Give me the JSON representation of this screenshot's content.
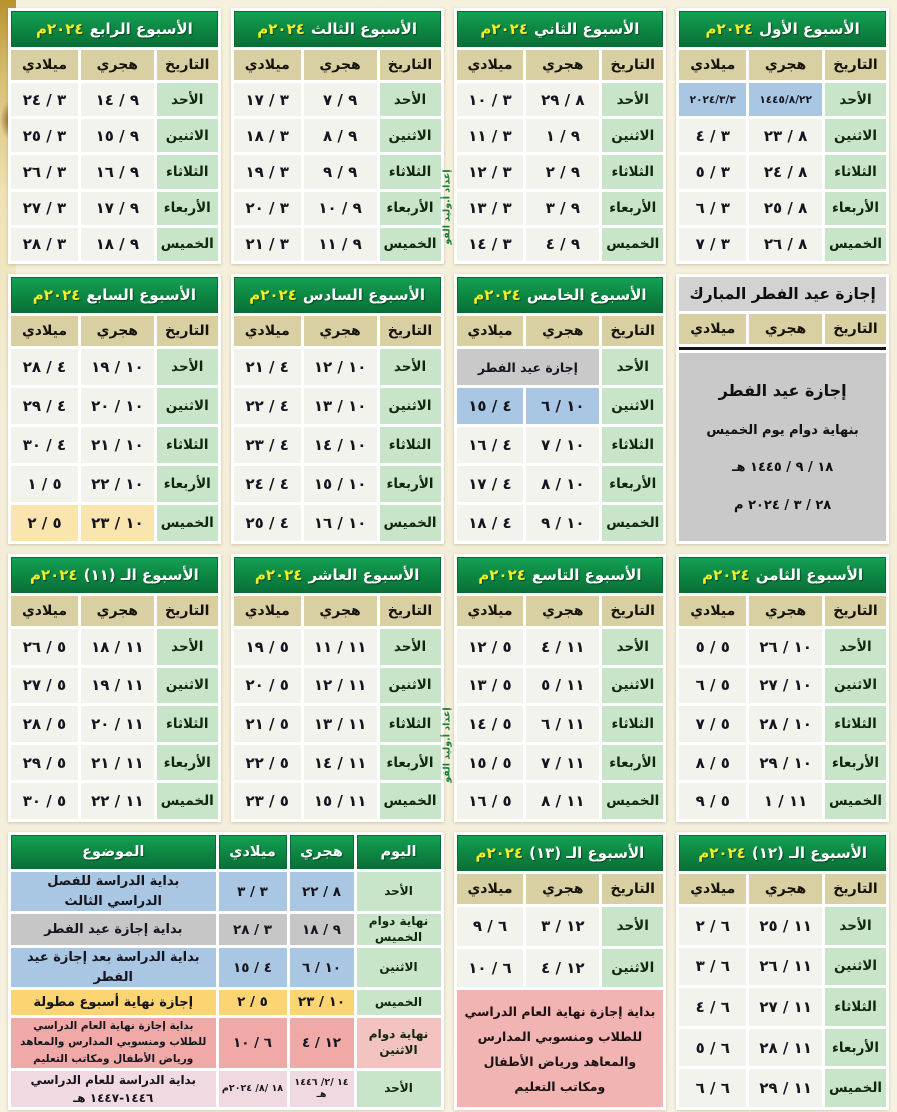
{
  "page": {
    "credit": "إعداد أ.وليد القو"
  },
  "labels": {
    "date": "التاريخ",
    "hijri": "هجري",
    "miladi": "ميلادي",
    "day": "اليوم",
    "subject": "الموضوع"
  },
  "weeks": [
    {
      "title": "الأسبوع الأول",
      "year": "٢٠٢٤م",
      "rows": [
        {
          "day": "الأحد",
          "hijri": "١٤٤٥/٨/٢٢",
          "miladi": "٢٠٢٤/٣/٣",
          "cls": "blue small"
        },
        {
          "day": "الاثنين",
          "hijri": "٨ / ٢٣",
          "miladi": "٣ / ٤",
          "cls": ""
        },
        {
          "day": "الثلاثاء",
          "hijri": "٨ / ٢٤",
          "miladi": "٣ / ٥",
          "cls": ""
        },
        {
          "day": "الأربعاء",
          "hijri": "٨ / ٢٥",
          "miladi": "٣ / ٦",
          "cls": ""
        },
        {
          "day": "الخميس",
          "hijri": "٨ / ٢٦",
          "miladi": "٣ / ٧",
          "cls": ""
        }
      ]
    },
    {
      "title": "الأسبوع الثاني",
      "year": "٢٠٢٤م",
      "rows": [
        {
          "day": "الأحد",
          "hijri": "٨ / ٢٩",
          "miladi": "٣ / ١٠",
          "cls": ""
        },
        {
          "day": "الاثنين",
          "hijri": "٩ / ١",
          "miladi": "٣ / ١١",
          "cls": ""
        },
        {
          "day": "الثلاثاء",
          "hijri": "٩ / ٢",
          "miladi": "٣ / ١٢",
          "cls": ""
        },
        {
          "day": "الأربعاء",
          "hijri": "٩ / ٣",
          "miladi": "٣ / ١٣",
          "cls": ""
        },
        {
          "day": "الخميس",
          "hijri": "٩ / ٤",
          "miladi": "٣ / ١٤",
          "cls": ""
        }
      ]
    },
    {
      "title": "الأسبوع الثالث",
      "year": "٢٠٢٤م",
      "rows": [
        {
          "day": "الأحد",
          "hijri": "٩ / ٧",
          "miladi": "٣ / ١٧",
          "cls": ""
        },
        {
          "day": "الاثنين",
          "hijri": "٩ / ٨",
          "miladi": "٣ / ١٨",
          "cls": ""
        },
        {
          "day": "الثلاثاء",
          "hijri": "٩ / ٩",
          "miladi": "٣ / ١٩",
          "cls": ""
        },
        {
          "day": "الأربعاء",
          "hijri": "٩ / ١٠",
          "miladi": "٣ / ٢٠",
          "cls": ""
        },
        {
          "day": "الخميس",
          "hijri": "٩ / ١١",
          "miladi": "٣ / ٢١",
          "cls": ""
        }
      ]
    },
    {
      "title": "الأسبوع الرابع",
      "year": "٢٠٢٤م",
      "rows": [
        {
          "day": "الأحد",
          "hijri": "٩ / ١٤",
          "miladi": "٣ / ٢٤",
          "cls": ""
        },
        {
          "day": "الاثنين",
          "hijri": "٩ / ١٥",
          "miladi": "٣ / ٢٥",
          "cls": ""
        },
        {
          "day": "الثلاثاء",
          "hijri": "٩ / ١٦",
          "miladi": "٣ / ٢٦",
          "cls": ""
        },
        {
          "day": "الأربعاء",
          "hijri": "٩ / ١٧",
          "miladi": "٣ / ٢٧",
          "cls": ""
        },
        {
          "day": "الخميس",
          "hijri": "٩ / ١٨",
          "miladi": "٣ / ٢٨",
          "cls": ""
        }
      ]
    },
    {
      "title": "الأسبوع الخامس",
      "year": "٢٠٢٤م",
      "rows": [
        {
          "day": "الأحد",
          "hijri": "إجازة عيد الفطر",
          "miladi": "",
          "cls": "merged"
        },
        {
          "day": "الاثنين",
          "hijri": "١٠ / ٦",
          "miladi": "٤ / ١٥",
          "cls": "blue"
        },
        {
          "day": "الثلاثاء",
          "hijri": "١٠ / ٧",
          "miladi": "٤ / ١٦",
          "cls": ""
        },
        {
          "day": "الأربعاء",
          "hijri": "١٠ / ٨",
          "miladi": "٤ / ١٧",
          "cls": ""
        },
        {
          "day": "الخميس",
          "hijri": "١٠ / ٩",
          "miladi": "٤ / ١٨",
          "cls": ""
        }
      ]
    },
    {
      "title": "الأسبوع السادس",
      "year": "٢٠٢٤م",
      "rows": [
        {
          "day": "الأحد",
          "hijri": "١٠ / ١٢",
          "miladi": "٤ / ٢١",
          "cls": ""
        },
        {
          "day": "الاثنين",
          "hijri": "١٠ / ١٣",
          "miladi": "٤ / ٢٢",
          "cls": ""
        },
        {
          "day": "الثلاثاء",
          "hijri": "١٠ / ١٤",
          "miladi": "٤ / ٢٣",
          "cls": ""
        },
        {
          "day": "الأربعاء",
          "hijri": "١٠ / ١٥",
          "miladi": "٤ / ٢٤",
          "cls": ""
        },
        {
          "day": "الخميس",
          "hijri": "١٠ / ١٦",
          "miladi": "٤ / ٢٥",
          "cls": ""
        }
      ]
    },
    {
      "title": "الأسبوع السابع",
      "year": "٢٠٢٤م",
      "rows": [
        {
          "day": "الأحد",
          "hijri": "١٠ / ١٩",
          "miladi": "٤ / ٢٨",
          "cls": ""
        },
        {
          "day": "الاثنين",
          "hijri": "١٠ / ٢٠",
          "miladi": "٤ / ٢٩",
          "cls": ""
        },
        {
          "day": "الثلاثاء",
          "hijri": "١٠ / ٢١",
          "miladi": "٤ / ٣٠",
          "cls": ""
        },
        {
          "day": "الأربعاء",
          "hijri": "١٠ / ٢٢",
          "miladi": "٥ / ١",
          "cls": ""
        },
        {
          "day": "الخميس",
          "hijri": "١٠ / ٢٣",
          "miladi": "٥ / ٢",
          "cls": "yellow"
        }
      ]
    },
    {
      "title": "الأسبوع الثامن",
      "year": "٢٠٢٤م",
      "rows": [
        {
          "day": "الأحد",
          "hijri": "١٠ / ٢٦",
          "miladi": "٥ / ٥",
          "cls": ""
        },
        {
          "day": "الاثنين",
          "hijri": "١٠ / ٢٧",
          "miladi": "٥ / ٦",
          "cls": ""
        },
        {
          "day": "الثلاثاء",
          "hijri": "١٠ / ٢٨",
          "miladi": "٥ / ٧",
          "cls": ""
        },
        {
          "day": "الأربعاء",
          "hijri": "١٠ / ٢٩",
          "miladi": "٥ / ٨",
          "cls": ""
        },
        {
          "day": "الخميس",
          "hijri": "١١ / ١",
          "miladi": "٥ / ٩",
          "cls": ""
        }
      ]
    },
    {
      "title": "الأسبوع التاسع",
      "year": "٢٠٢٤م",
      "rows": [
        {
          "day": "الأحد",
          "hijri": "١١ / ٤",
          "miladi": "٥ / ١٢",
          "cls": ""
        },
        {
          "day": "الاثنين",
          "hijri": "١١ / ٥",
          "miladi": "٥ / ١٣",
          "cls": ""
        },
        {
          "day": "الثلاثاء",
          "hijri": "١١ / ٦",
          "miladi": "٥ / ١٤",
          "cls": ""
        },
        {
          "day": "الأربعاء",
          "hijri": "١١ / ٧",
          "miladi": "٥ / ١٥",
          "cls": ""
        },
        {
          "day": "الخميس",
          "hijri": "١١ / ٨",
          "miladi": "٥ / ١٦",
          "cls": ""
        }
      ]
    },
    {
      "title": "الأسبوع العاشر",
      "year": "٢٠٢٤م",
      "rows": [
        {
          "day": "الأحد",
          "hijri": "١١ / ١١",
          "miladi": "٥ / ١٩",
          "cls": ""
        },
        {
          "day": "الاثنين",
          "hijri": "١١ / ١٢",
          "miladi": "٥ / ٢٠",
          "cls": ""
        },
        {
          "day": "الثلاثاء",
          "hijri": "١١ / ١٣",
          "miladi": "٥ / ٢١",
          "cls": ""
        },
        {
          "day": "الأربعاء",
          "hijri": "١١ / ١٤",
          "miladi": "٥ / ٢٢",
          "cls": ""
        },
        {
          "day": "الخميس",
          "hijri": "١١ / ١٥",
          "miladi": "٥ / ٢٣",
          "cls": ""
        }
      ]
    },
    {
      "title": "الأسبوع الـ (١١)",
      "year": "٢٠٢٤م",
      "rows": [
        {
          "day": "الأحد",
          "hijri": "١١ / ١٨",
          "miladi": "٥ / ٢٦",
          "cls": ""
        },
        {
          "day": "الاثنين",
          "hijri": "١١ / ١٩",
          "miladi": "٥ / ٢٧",
          "cls": ""
        },
        {
          "day": "الثلاثاء",
          "hijri": "١١ / ٢٠",
          "miladi": "٥ / ٢٨",
          "cls": ""
        },
        {
          "day": "الأربعاء",
          "hijri": "١١ / ٢١",
          "miladi": "٥ / ٢٩",
          "cls": ""
        },
        {
          "day": "الخميس",
          "hijri": "١١ / ٢٢",
          "miladi": "٥ / ٣٠",
          "cls": ""
        }
      ]
    },
    {
      "title": "الأسبوع الـ (١٢)",
      "year": "٢٠٢٤م",
      "rows": [
        {
          "day": "الأحد",
          "hijri": "١١ / ٢٥",
          "miladi": "٦ / ٢",
          "cls": ""
        },
        {
          "day": "الاثنين",
          "hijri": "١١ / ٢٦",
          "miladi": "٦ / ٣",
          "cls": ""
        },
        {
          "day": "الثلاثاء",
          "hijri": "١١ / ٢٧",
          "miladi": "٦ / ٤",
          "cls": ""
        },
        {
          "day": "الأربعاء",
          "hijri": "١١ / ٢٨",
          "miladi": "٦ / ٥",
          "cls": ""
        },
        {
          "day": "الخميس",
          "hijri": "١١ / ٢٩",
          "miladi": "٦ / ٦",
          "cls": ""
        }
      ]
    },
    {
      "title": "الأسبوع الـ (١٣)",
      "year": "٢٠٢٤م",
      "note": "بداية إجازة نهاية العام الدراسي للطلاب ومنسوبي المدارس والمعاهد ورياض الأطفال ومكاتب التعليم",
      "rows": [
        {
          "day": "الأحد",
          "hijri": "١٢ / ٣",
          "miladi": "٦ / ٩",
          "cls": ""
        },
        {
          "day": "الاثنين",
          "hijri": "١٢ / ٤",
          "miladi": "٦ / ١٠",
          "cls": ""
        }
      ]
    }
  ],
  "eid": {
    "title": "إجازة عيد الفطر المبارك",
    "lines": [
      "إجازة عيد الفطر",
      "بنهاية دوام يوم الخميس",
      "١٨ / ٩ / ١٤٤٥ هـ",
      "٢٨ / ٣ / ٢٠٢٤ م"
    ]
  },
  "summary": {
    "rows": [
      {
        "day": "الأحد",
        "hijri": "٨ / ٢٢",
        "miladi": "٣ / ٣",
        "subject": "بداية الدراسة للفصل الدراسي الثالث",
        "cls": "blue"
      },
      {
        "day": "نهاية دوام الخميس",
        "hijri": "٩ / ١٨",
        "miladi": "٣ / ٢٨",
        "subject": "بداية إجازة عيد الفطر",
        "cls": "gray"
      },
      {
        "day": "الاثنين",
        "hijri": "١٠ / ٦",
        "miladi": "٤ / ١٥",
        "subject": "بداية الدراسة بعد إجازة عيد الفطر",
        "cls": "blue"
      },
      {
        "day": "الخميس",
        "hijri": "١٠ / ٢٣",
        "miladi": "٥ / ٢",
        "subject": "إجازة نهاية أسبوع مطولة",
        "cls": "yellow"
      },
      {
        "day": "نهاية دوام الاثنين",
        "hijri": "١٢ / ٤",
        "miladi": "٦ / ١٠",
        "subject": "بداية إجازة نهاية العام الدراسي للطلاب ومنسوبي المدارس والمعاهد ورياض الأطفال ومكاتب التعليم",
        "cls": "pink"
      },
      {
        "day": "الأحد",
        "hijri": "١٤ /٢/ ١٤٤٦ هـ",
        "miladi": "١٨ /٨/ ٢٠٢٤م",
        "subject": "بداية الدراسة للعام الدراسي ١٤٤٦-١٤٤٧ هـ",
        "cls": "rose"
      }
    ]
  }
}
